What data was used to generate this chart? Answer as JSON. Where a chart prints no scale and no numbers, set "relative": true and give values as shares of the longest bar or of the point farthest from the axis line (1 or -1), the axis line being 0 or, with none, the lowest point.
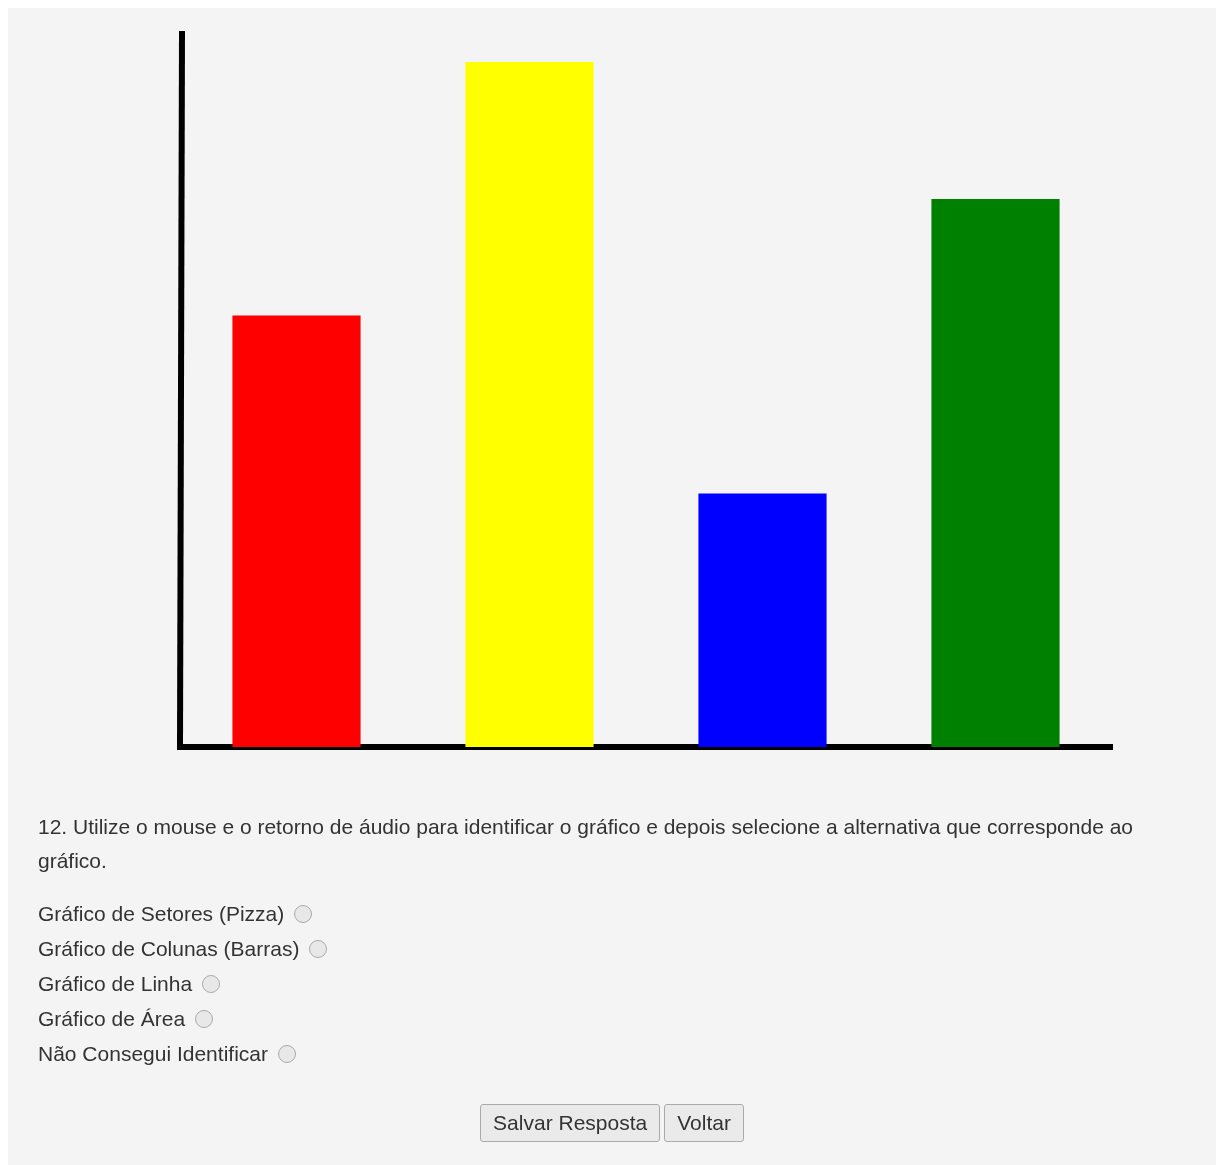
{
  "chart_data": {
    "type": "bar",
    "relative": true,
    "categories": [
      null,
      null,
      null,
      null
    ],
    "values": [
      0.63,
      1,
      0.37,
      0.8
    ],
    "colors": [
      "#ff0000",
      "#ffff00",
      "#0000ff",
      "#008000"
    ],
    "annotations": [
      "12. Utilize o mouse e o retorno de áudio para identificar o gráfico e depois selecione a alternativa que corresponde ao gráfico.",
      "Gráfico de Setores (Pizza)",
      "Gráfico de Colunas (Barras)",
      "Gráfico de Linha",
      "Gráfico de Área",
      "Não Consegui Identificar",
      "Salvar Resposta",
      "Voltar"
    ]
  }
}
